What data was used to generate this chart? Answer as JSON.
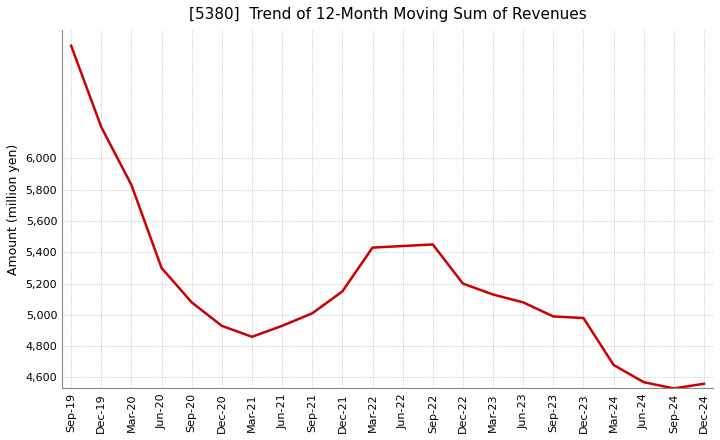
{
  "title": "[5380]  Trend of 12-Month Moving Sum of Revenues",
  "ylabel": "Amount (million yen)",
  "line_color": "#cc0000",
  "background_color": "#ffffff",
  "grid_color": "#aaaaaa",
  "x_labels": [
    "Sep-19",
    "Dec-19",
    "Mar-20",
    "Jun-20",
    "Sep-20",
    "Dec-20",
    "Mar-21",
    "Jun-21",
    "Sep-21",
    "Dec-21",
    "Mar-22",
    "Jun-22",
    "Sep-22",
    "Dec-22",
    "Mar-23",
    "Jun-23",
    "Sep-23",
    "Dec-23",
    "Mar-24",
    "Jun-24",
    "Sep-24",
    "Dec-24"
  ],
  "values": [
    6720,
    6200,
    5830,
    5300,
    5080,
    4930,
    4860,
    4930,
    5010,
    5150,
    5430,
    5440,
    5450,
    5200,
    5130,
    5080,
    4990,
    4980,
    4680,
    4570,
    4530,
    4560
  ],
  "ylim": [
    4530,
    6820
  ],
  "yticks": [
    4600,
    4800,
    5000,
    5200,
    5400,
    5600,
    5800,
    6000
  ],
  "title_fontsize": 11,
  "label_fontsize": 9,
  "tick_fontsize": 8
}
